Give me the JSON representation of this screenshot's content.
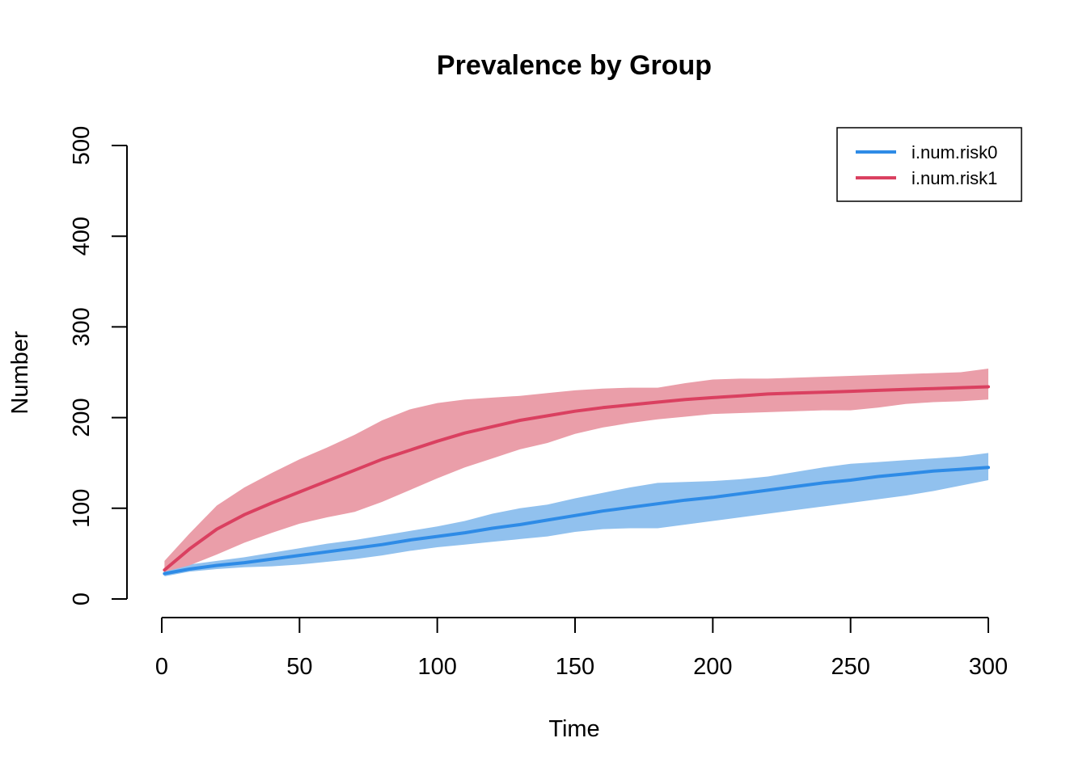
{
  "chart_data": {
    "type": "area",
    "title": "Prevalence by Group",
    "xlabel": "Time",
    "ylabel": "Number",
    "xlim": [
      1,
      300
    ],
    "ylim": [
      0,
      500
    ],
    "x_ticks": [
      0,
      50,
      100,
      150,
      200,
      250,
      300
    ],
    "y_ticks": [
      0,
      100,
      200,
      300,
      400,
      500
    ],
    "grid": false,
    "legend_position": "top-right",
    "x": [
      1,
      10,
      20,
      30,
      40,
      50,
      60,
      70,
      80,
      90,
      100,
      110,
      120,
      130,
      140,
      150,
      160,
      170,
      180,
      190,
      200,
      210,
      220,
      230,
      240,
      250,
      260,
      270,
      280,
      290,
      300
    ],
    "series": [
      {
        "name": "i.num.risk0",
        "color": "#2E8BE6",
        "band_color": "#91C1EE",
        "mean": [
          28,
          33,
          37,
          40,
          44,
          48,
          52,
          56,
          60,
          65,
          69,
          73,
          78,
          82,
          87,
          92,
          97,
          101,
          105,
          109,
          112,
          116,
          120,
          124,
          128,
          131,
          135,
          138,
          141,
          143,
          145
        ],
        "upper": [
          30,
          38,
          42,
          46,
          51,
          56,
          61,
          65,
          70,
          75,
          80,
          86,
          94,
          100,
          104,
          111,
          117,
          123,
          128,
          129,
          130,
          132,
          135,
          140,
          145,
          149,
          151,
          153,
          155,
          157,
          161
        ],
        "lower": [
          25,
          30,
          33,
          35,
          36,
          38,
          41,
          44,
          48,
          53,
          57,
          60,
          63,
          66,
          69,
          74,
          77,
          78,
          78,
          82,
          86,
          90,
          94,
          98,
          102,
          106,
          110,
          114,
          119,
          125,
          131
        ]
      },
      {
        "name": "i.num.risk1",
        "color": "#DA4060",
        "band_color": "#EA9EA9",
        "mean": [
          32,
          55,
          77,
          93,
          106,
          118,
          130,
          142,
          154,
          164,
          174,
          183,
          190,
          197,
          202,
          207,
          211,
          214,
          217,
          220,
          222,
          224,
          226,
          227,
          228,
          229,
          230,
          231,
          232,
          233,
          234
        ],
        "upper": [
          42,
          72,
          103,
          123,
          139,
          154,
          167,
          181,
          197,
          209,
          216,
          220,
          222,
          224,
          227,
          230,
          232,
          233,
          233,
          238,
          242,
          243,
          243,
          244,
          245,
          246,
          247,
          248,
          249,
          250,
          254
        ],
        "lower": [
          30,
          37,
          49,
          62,
          73,
          83,
          90,
          96,
          107,
          120,
          133,
          145,
          155,
          165,
          172,
          182,
          189,
          194,
          198,
          201,
          204,
          205,
          206,
          207,
          208,
          208,
          211,
          215,
          217,
          218,
          220
        ]
      }
    ]
  }
}
